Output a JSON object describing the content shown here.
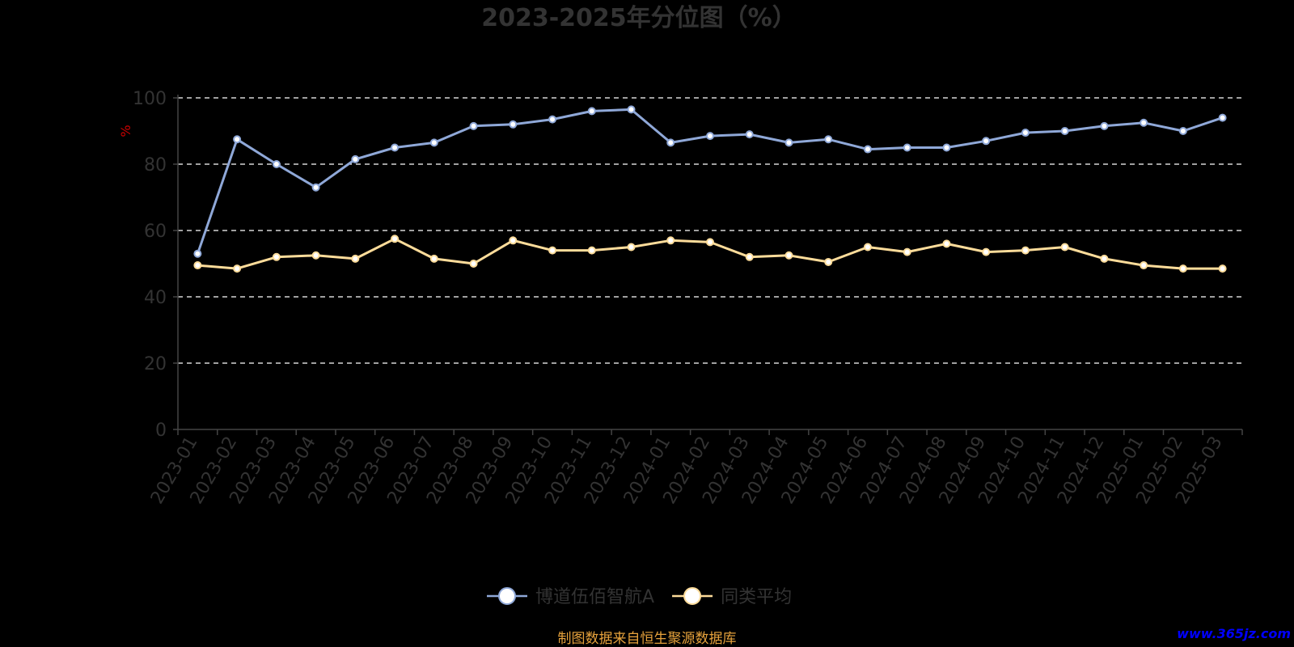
{
  "chart_data": {
    "type": "line",
    "title": "2023-2025年分位图（%）",
    "ylabel": "%",
    "ylim": [
      0,
      100
    ],
    "yticks": [
      0,
      20,
      40,
      60,
      80,
      100
    ],
    "grid": true,
    "legend_position": "bottom",
    "categories": [
      "2023-01",
      "2023-02",
      "2023-03",
      "2023-04",
      "2023-05",
      "2023-06",
      "2023-07",
      "2023-08",
      "2023-09",
      "2023-10",
      "2023-11",
      "2023-12",
      "2024-01",
      "2024-02",
      "2024-03",
      "2024-04",
      "2024-05",
      "2024-06",
      "2024-07",
      "2024-08",
      "2024-09",
      "2024-10",
      "2024-11",
      "2024-12",
      "2025-01",
      "2025-02",
      "2025-03"
    ],
    "series": [
      {
        "name": "博道伍佰智航A",
        "color": "#8fa8d8",
        "values": [
          53,
          87.5,
          80,
          73,
          81.5,
          85,
          86.5,
          91.5,
          92,
          93.5,
          96,
          96.5,
          86.5,
          88.5,
          89,
          86.5,
          87.5,
          84.5,
          85,
          85,
          87,
          89.5,
          90,
          91.5,
          92.5,
          90,
          94
        ]
      },
      {
        "name": "同类平均",
        "color": "#fddc9a",
        "values": [
          49.5,
          48.5,
          52,
          52.5,
          51.5,
          57.5,
          51.5,
          50,
          57,
          54,
          54,
          55,
          57,
          56.5,
          52,
          52.5,
          50.5,
          55,
          53.5,
          56,
          53.5,
          54,
          55,
          51.5,
          49.5,
          48.5,
          48.5
        ]
      }
    ]
  },
  "footer": {
    "source": "制图数据来自恒生聚源数据库",
    "watermark": "www.365jz.com"
  }
}
